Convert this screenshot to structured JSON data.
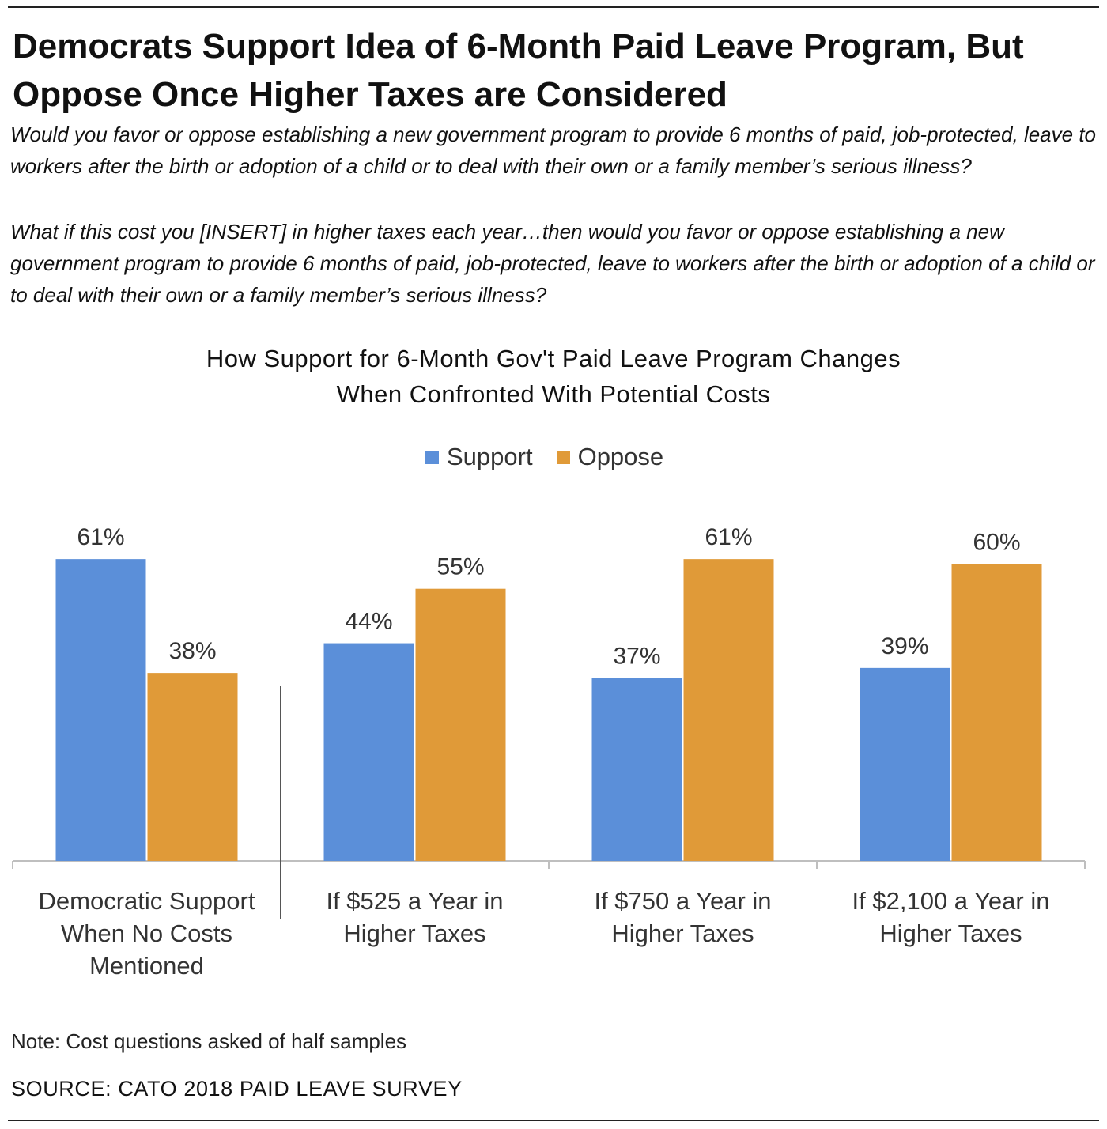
{
  "title_lines": [
    "Democrats Support Idea of 6-Month Paid Leave Program, But",
    "Oppose Once Higher Taxes are Considered"
  ],
  "question_1": "Would you favor or oppose establishing a new government program to provide 6 months of paid, job-protected, leave to workers after the birth or adoption of a child or to deal with their own or a family member’s serious illness?",
  "question_2": "What if this cost you [INSERT] in higher taxes each year…then would you favor or oppose establishing a new government program to provide 6 months of paid, job-protected, leave to workers after the birth or adoption of a child or to deal with their own or a family member’s serious illness?",
  "note": "Note: Cost questions asked of half samples",
  "source": "SOURCE: CATO 2018 PAID LEAVE SURVEY",
  "colors": {
    "support": "#5B8FD9",
    "oppose": "#E09A38",
    "axis": "#BFBFBF",
    "divider": "#555555"
  },
  "chart_data": {
    "type": "bar",
    "title_lines": [
      "How Support for 6-Month Gov't Paid Leave Program Changes",
      "When Confronted With Potential Costs"
    ],
    "legend_position": "top-center",
    "categories": [
      [
        "Democratic Support",
        "When No Costs",
        "Mentioned"
      ],
      [
        "If $525 a Year in",
        "Higher Taxes"
      ],
      [
        "If $750 a Year in",
        "Higher Taxes"
      ],
      [
        "If $2,100 a Year in",
        "Higher Taxes"
      ]
    ],
    "series": [
      {
        "name": "Support",
        "color": "#5B8FD9",
        "values": [
          61,
          44,
          37,
          39
        ],
        "labels": [
          "61%",
          "44%",
          "37%",
          "39%"
        ]
      },
      {
        "name": "Oppose",
        "color": "#E09A38",
        "values": [
          38,
          55,
          61,
          60
        ],
        "labels": [
          "38%",
          "55%",
          "61%",
          "60%"
        ]
      }
    ],
    "ylim": [
      0,
      70
    ],
    "grid": false,
    "y_axis_visible": false,
    "divider_after_category": 0
  }
}
